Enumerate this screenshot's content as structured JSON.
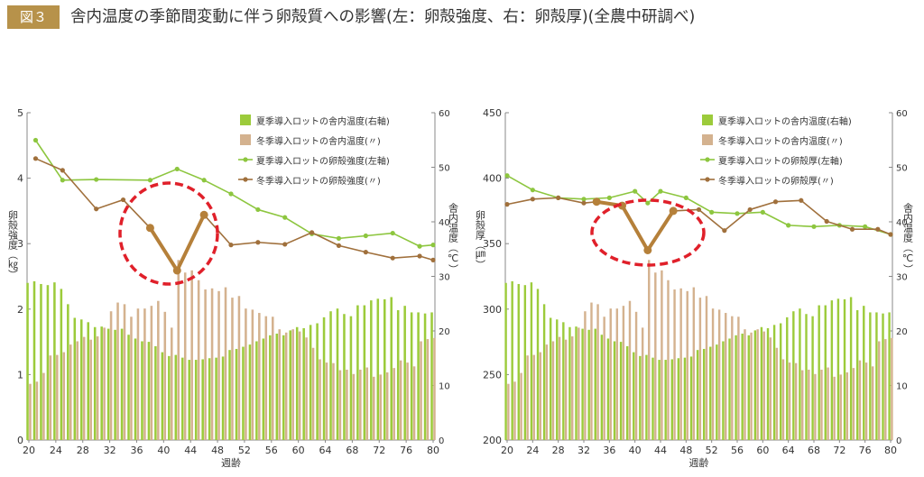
{
  "header": {
    "figure_label": "図３",
    "title": "舎内温度の季節間変動に伴う卵殻質への影響(左：卵殻強度、右：卵殻厚)(全農中研調べ)"
  },
  "colors": {
    "summer_bar": "#9ccb3b",
    "winter_bar": "#d4b28f",
    "summer_line": "#8dc63f",
    "winter_line": "#a0703c",
    "highlight": "#b5803a",
    "circle": "#e0202a"
  },
  "chart_data": [
    {
      "type": "bar+line",
      "xlabel": "週齢",
      "ylabel_left": "卵殻強度（㎏）",
      "ylabel_right": "舎内温度（℃）",
      "ylim_left": [
        0,
        5
      ],
      "ylim_right": [
        0,
        60
      ],
      "yticks_left": [
        "0",
        "1",
        "2",
        "3",
        "4",
        "5"
      ],
      "yticks_right": [
        "0",
        "10",
        "20",
        "30",
        "40",
        "50",
        "60"
      ],
      "xticks": [
        "20",
        "24",
        "28",
        "32",
        "36",
        "40",
        "44",
        "48",
        "52",
        "56",
        "60",
        "64",
        "68",
        "72",
        "76",
        "80"
      ],
      "legend": [
        "夏季導入ロットの舎内温度(右軸)",
        "冬季導入ロットの舎内温度(〃)",
        "夏季導入ロットの卵殻強度(左軸)",
        "冬季導入ロットの卵殻強度(〃)"
      ],
      "x": [
        20,
        21,
        22,
        23,
        24,
        25,
        26,
        27,
        28,
        29,
        30,
        31,
        32,
        33,
        34,
        35,
        36,
        37,
        38,
        39,
        40,
        41,
        42,
        43,
        44,
        45,
        46,
        47,
        48,
        49,
        50,
        51,
        52,
        53,
        54,
        55,
        56,
        57,
        58,
        59,
        60,
        61,
        62,
        63,
        64,
        65,
        66,
        67,
        68,
        69,
        70,
        71,
        72,
        73,
        74,
        75,
        76,
        77,
        78,
        79,
        80
      ],
      "summer_temp": [
        28.8,
        29.1,
        28.6,
        28.4,
        28.9,
        27.7,
        24.9,
        22.4,
        22.1,
        21.6,
        20.7,
        20.8,
        20.4,
        20.2,
        20.4,
        19.3,
        18.6,
        18.1,
        18.0,
        17.2,
        16.1,
        15.4,
        15.6,
        15.1,
        14.7,
        14.7,
        14.8,
        15.0,
        15.1,
        15.3,
        16.5,
        16.7,
        17.1,
        17.5,
        18.1,
        18.6,
        19.2,
        19.5,
        19.2,
        20.1,
        20.7,
        20.5,
        21.1,
        21.4,
        22.5,
        23.6,
        24.1,
        23.1,
        22.7,
        24.7,
        24.7,
        25.6,
        25.9,
        25.8,
        26.2,
        23.8,
        24.6,
        23.4,
        23.4,
        23.2,
        23.4
      ],
      "winter_temp": [
        10.3,
        10.7,
        12.3,
        15.5,
        15.6,
        16.1,
        17.5,
        18.1,
        18.9,
        18.4,
        19.0,
        20.6,
        23.6,
        25.2,
        24.9,
        22.6,
        24.1,
        24.1,
        24.6,
        25.5,
        23.5,
        20.6,
        33.0,
        30.7,
        31.1,
        29.3,
        27.6,
        27.8,
        27.3,
        28.0,
        26.1,
        26.4,
        24.1,
        23.9,
        23.3,
        22.7,
        22.6,
        20.3,
        19.7,
        20.3,
        19.9,
        18.8,
        16.9,
        14.8,
        14.2,
        14.1,
        12.8,
        12.9,
        12.1,
        12.9,
        13.3,
        11.6,
        12.0,
        12.4,
        13.2,
        14.6,
        14.2,
        13.5,
        18.1,
        18.5,
        18.7
      ],
      "summer_line": {
        "x": [
          21,
          25,
          30,
          38,
          42,
          46,
          50,
          54,
          58,
          62,
          66,
          70,
          74,
          78,
          80
        ],
        "y": [
          4.58,
          3.97,
          3.98,
          3.97,
          4.14,
          3.97,
          3.76,
          3.52,
          3.4,
          3.15,
          3.08,
          3.12,
          3.16,
          2.96,
          2.98
        ]
      },
      "winter_line": {
        "x": [
          21,
          25,
          30,
          34,
          38,
          42,
          46,
          50,
          54,
          58,
          62,
          66,
          70,
          74,
          78,
          80
        ],
        "y": [
          4.3,
          4.12,
          3.53,
          3.67,
          3.24,
          2.59,
          3.44,
          2.98,
          3.02,
          2.99,
          3.17,
          2.97,
          2.87,
          2.78,
          2.81,
          2.75
        ]
      },
      "highlight_line": {
        "x": [
          38,
          42,
          46
        ],
        "y": [
          3.24,
          2.59,
          3.44
        ]
      }
    },
    {
      "type": "bar+line",
      "xlabel": "週齢",
      "ylabel_left": "卵殻厚（㎛）",
      "ylabel_right": "舎内温度（℃）",
      "ylim_left": [
        200,
        450
      ],
      "ylim_right": [
        0,
        60
      ],
      "yticks_left": [
        "200",
        "250",
        "300",
        "350",
        "400",
        "450"
      ],
      "yticks_right": [
        "0",
        "10",
        "20",
        "30",
        "40",
        "50",
        "60"
      ],
      "xticks": [
        "20",
        "24",
        "28",
        "32",
        "36",
        "40",
        "44",
        "48",
        "52",
        "56",
        "60",
        "64",
        "68",
        "72",
        "76",
        "80"
      ],
      "legend": [
        "夏季導入ロットの舎内温度(右軸)",
        "冬季導入ロットの舎内温度(〃)",
        "夏季導入ロットの卵殻厚(左軸)",
        "冬季導入ロットの卵殻厚(〃)"
      ],
      "x": [
        20,
        21,
        22,
        23,
        24,
        25,
        26,
        27,
        28,
        29,
        30,
        31,
        32,
        33,
        34,
        35,
        36,
        37,
        38,
        39,
        40,
        41,
        42,
        43,
        44,
        45,
        46,
        47,
        48,
        49,
        50,
        51,
        52,
        53,
        54,
        55,
        56,
        57,
        58,
        59,
        60,
        61,
        62,
        63,
        64,
        65,
        66,
        67,
        68,
        69,
        70,
        71,
        72,
        73,
        74,
        75,
        76,
        77,
        78,
        79,
        80
      ],
      "summer_temp": [
        28.8,
        29.1,
        28.6,
        28.4,
        28.9,
        27.7,
        24.9,
        22.4,
        22.1,
        21.6,
        20.7,
        20.8,
        20.4,
        20.2,
        20.4,
        19.3,
        18.6,
        18.1,
        18.0,
        17.2,
        16.1,
        15.4,
        15.6,
        15.1,
        14.7,
        14.7,
        14.8,
        15.0,
        15.1,
        15.3,
        16.5,
        16.7,
        17.1,
        17.5,
        18.1,
        18.6,
        19.2,
        19.5,
        19.2,
        20.1,
        20.7,
        20.5,
        21.1,
        21.4,
        22.5,
        23.6,
        24.1,
        23.1,
        22.7,
        24.7,
        24.7,
        25.6,
        25.9,
        25.8,
        26.2,
        23.8,
        24.6,
        23.4,
        23.4,
        23.2,
        23.4
      ],
      "winter_temp": [
        10.3,
        10.7,
        12.3,
        15.5,
        15.6,
        16.1,
        17.5,
        18.1,
        18.9,
        18.4,
        19.0,
        20.6,
        23.6,
        25.2,
        24.9,
        22.6,
        24.1,
        24.1,
        24.6,
        25.5,
        23.5,
        20.6,
        33.0,
        30.7,
        31.1,
        29.3,
        27.6,
        27.8,
        27.3,
        28.0,
        26.1,
        26.4,
        24.1,
        23.9,
        23.3,
        22.7,
        22.6,
        20.3,
        19.7,
        20.3,
        19.9,
        18.8,
        16.9,
        14.8,
        14.2,
        14.1,
        12.8,
        12.9,
        12.1,
        12.9,
        13.3,
        11.6,
        12.0,
        12.4,
        13.2,
        14.6,
        14.2,
        13.5,
        18.1,
        18.5,
        18.7
      ],
      "summer_line": {
        "x": [
          20,
          24,
          28,
          32,
          36,
          40,
          42,
          44,
          48,
          52,
          56,
          60,
          64,
          68,
          72,
          76,
          80
        ],
        "y": [
          402,
          391,
          385,
          384,
          385,
          390,
          381,
          390,
          385,
          374,
          373,
          374,
          364,
          363,
          364,
          363,
          357
        ]
      },
      "winter_line": {
        "x": [
          20,
          24,
          28,
          32,
          34,
          38,
          42,
          46,
          50,
          54,
          58,
          62,
          66,
          70,
          74,
          78,
          80
        ],
        "y": [
          380,
          384,
          385,
          381,
          382,
          379,
          345,
          375,
          376,
          360,
          376,
          382,
          383,
          367,
          361,
          361,
          357
        ]
      },
      "highlight_line": {
        "x": [
          34,
          38,
          42,
          46
        ],
        "y": [
          382,
          379,
          345,
          375
        ]
      }
    }
  ]
}
